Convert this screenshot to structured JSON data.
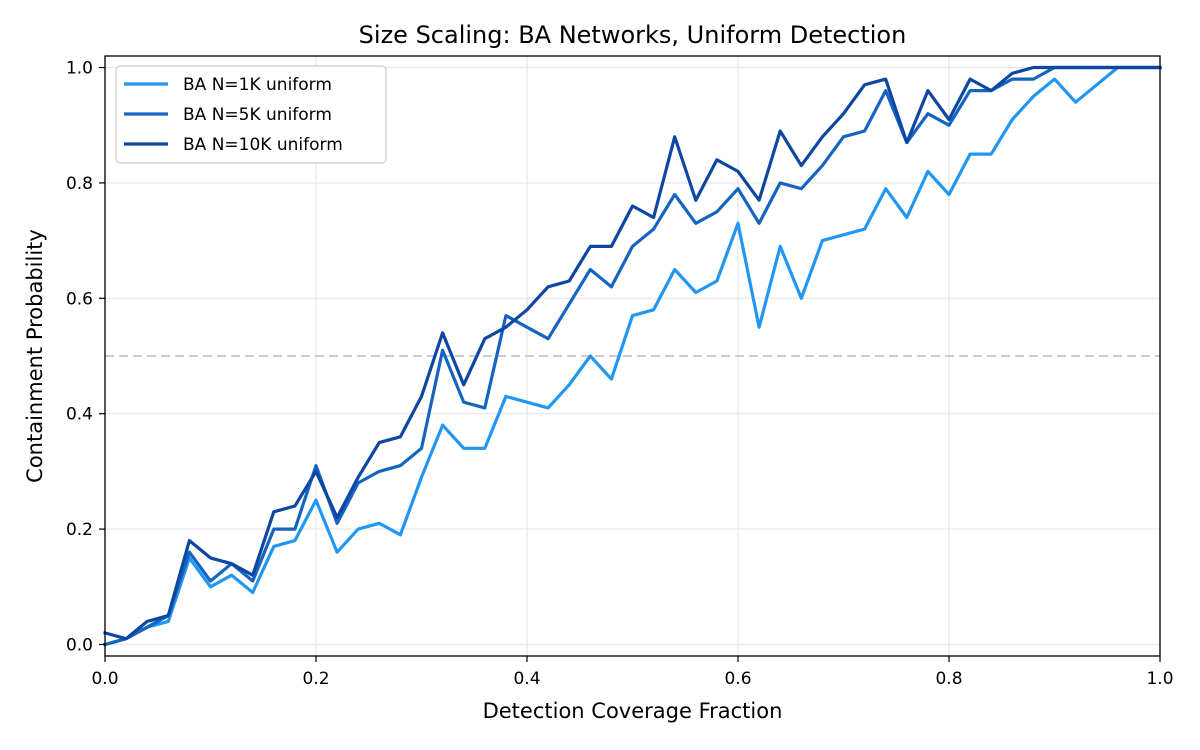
{
  "chart_data": {
    "type": "line",
    "title": "Size Scaling: BA Networks, Uniform Detection",
    "xlabel": "Detection Coverage Fraction",
    "ylabel": "Containment Probability",
    "xlim": [
      0,
      1
    ],
    "ylim": [
      -0.02,
      1.02
    ],
    "xticks": [
      "0.0",
      "0.2",
      "0.4",
      "0.6",
      "0.8",
      "1.0"
    ],
    "yticks": [
      "0.0",
      "0.2",
      "0.4",
      "0.6",
      "0.8",
      "1.0"
    ],
    "grid": true,
    "legend_position": "top-left",
    "reference_line": {
      "y": 0.5,
      "style": "dashed",
      "color": "#cccccc"
    },
    "x": [
      0,
      0.02,
      0.04,
      0.06,
      0.08,
      0.1,
      0.12,
      0.14,
      0.16,
      0.18,
      0.2,
      0.22,
      0.24,
      0.26,
      0.28,
      0.3,
      0.32,
      0.34,
      0.36,
      0.38,
      0.4,
      0.42,
      0.44,
      0.46,
      0.48,
      0.5,
      0.52,
      0.54,
      0.56,
      0.58,
      0.6,
      0.62,
      0.64,
      0.66,
      0.68,
      0.7,
      0.72,
      0.74,
      0.76,
      0.78,
      0.8,
      0.82,
      0.84,
      0.86,
      0.88,
      0.9,
      0.92,
      0.94,
      0.96,
      0.98,
      1.0
    ],
    "series": [
      {
        "name": "BA N=1K uniform",
        "color": "#2196F3",
        "values": [
          0.0,
          0.01,
          0.03,
          0.04,
          0.15,
          0.1,
          0.12,
          0.09,
          0.17,
          0.18,
          0.25,
          0.16,
          0.2,
          0.21,
          0.19,
          0.29,
          0.38,
          0.34,
          0.34,
          0.43,
          0.42,
          0.41,
          0.45,
          0.5,
          0.46,
          0.57,
          0.58,
          0.65,
          0.61,
          0.63,
          0.73,
          0.55,
          0.69,
          0.6,
          0.7,
          0.71,
          0.72,
          0.79,
          0.74,
          0.82,
          0.78,
          0.85,
          0.85,
          0.91,
          0.95,
          0.98,
          0.94,
          0.97,
          1.0,
          1.0,
          1.0
        ]
      },
      {
        "name": "BA N=5K uniform",
        "color": "#1565C0",
        "values": [
          0.0,
          0.01,
          0.03,
          0.05,
          0.16,
          0.11,
          0.14,
          0.11,
          0.2,
          0.2,
          0.31,
          0.21,
          0.28,
          0.3,
          0.31,
          0.34,
          0.51,
          0.42,
          0.41,
          0.57,
          0.55,
          0.53,
          0.59,
          0.65,
          0.62,
          0.69,
          0.72,
          0.78,
          0.73,
          0.75,
          0.79,
          0.73,
          0.8,
          0.79,
          0.83,
          0.88,
          0.89,
          0.96,
          0.87,
          0.92,
          0.9,
          0.96,
          0.96,
          0.98,
          0.98,
          1.0,
          1.0,
          1.0,
          1.0,
          1.0,
          1.0
        ]
      },
      {
        "name": "BA N=10K uniform",
        "color": "#0D47A1",
        "values": [
          0.02,
          0.01,
          0.04,
          0.05,
          0.18,
          0.15,
          0.14,
          0.12,
          0.23,
          0.24,
          0.3,
          0.22,
          0.29,
          0.35,
          0.36,
          0.43,
          0.54,
          0.45,
          0.53,
          0.55,
          0.58,
          0.62,
          0.63,
          0.69,
          0.69,
          0.76,
          0.74,
          0.88,
          0.77,
          0.84,
          0.82,
          0.77,
          0.89,
          0.83,
          0.88,
          0.92,
          0.97,
          0.98,
          0.87,
          0.96,
          0.91,
          0.98,
          0.96,
          0.99,
          1.0,
          1.0,
          1.0,
          1.0,
          1.0,
          1.0,
          1.0
        ]
      }
    ]
  }
}
